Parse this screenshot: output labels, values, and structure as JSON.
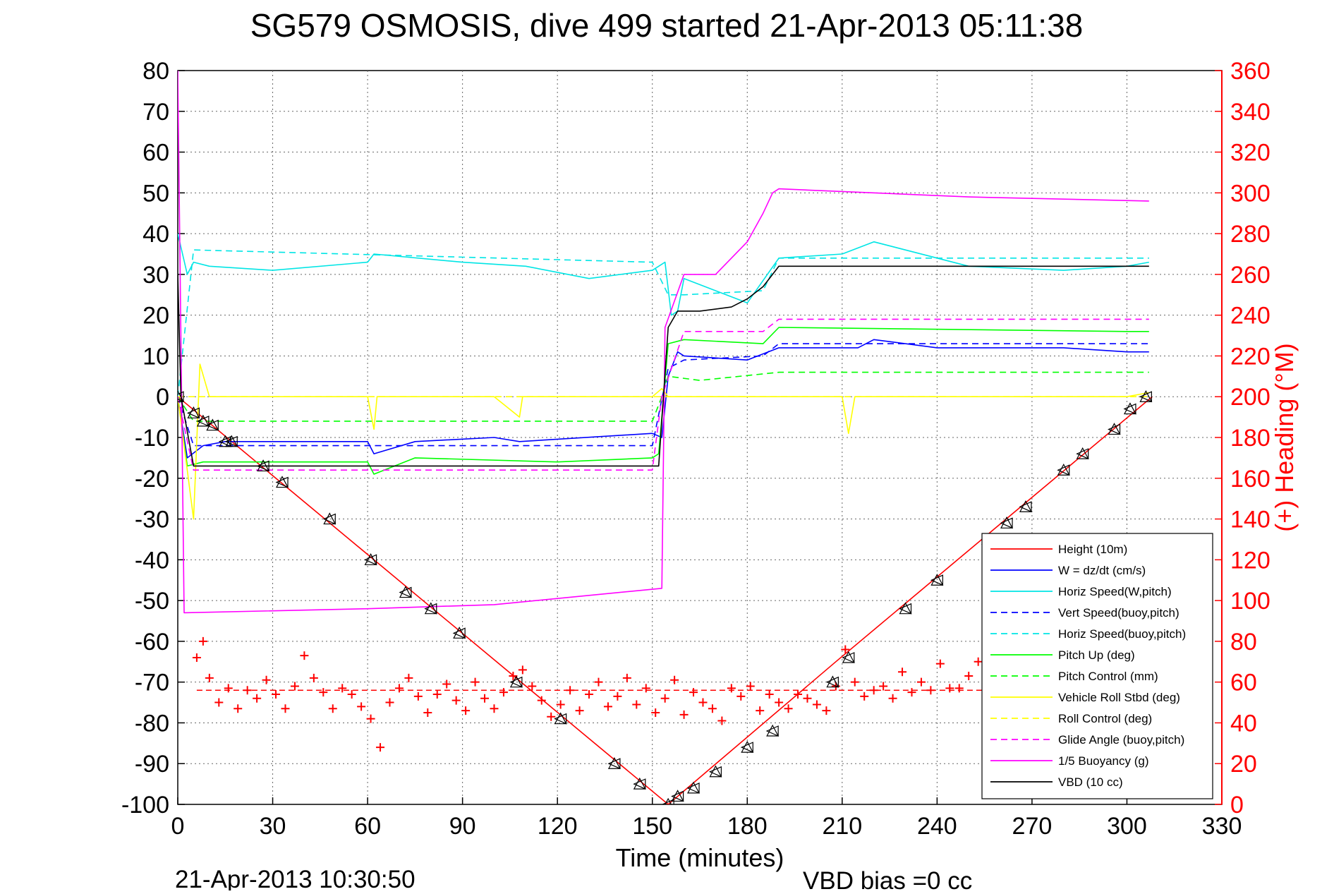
{
  "chart_data": {
    "type": "line",
    "title": "SG579 OSMOSIS, dive 499 started 21-Apr-2013 05:11:38",
    "xlabel": "Time (minutes)",
    "ylabel": "",
    "y2label": "(+) Heading (°M)",
    "xlim": [
      0,
      330
    ],
    "ylim": [
      -100,
      80
    ],
    "y2lim": [
      0,
      360
    ],
    "xticks": [
      0,
      30,
      60,
      90,
      120,
      150,
      180,
      210,
      240,
      270,
      300,
      330
    ],
    "yticks": [
      -100,
      -90,
      -80,
      -70,
      -60,
      -50,
      -40,
      -30,
      -20,
      -10,
      0,
      10,
      20,
      30,
      40,
      50,
      60,
      70,
      80
    ],
    "y2ticks": [
      0,
      20,
      40,
      60,
      80,
      100,
      120,
      140,
      160,
      180,
      200,
      220,
      240,
      260,
      280,
      300,
      320,
      340,
      360
    ],
    "grid": true,
    "legend_position": "bottom-right",
    "footer_left": "21-Apr-2013 10:30:50",
    "footer_right": "VBD bias =0 cc",
    "colors": {
      "red": "#ff0000",
      "blue": "#0000ff",
      "cyan": "#00e5e5",
      "green": "#00ff00",
      "yellow": "#ffff00",
      "magenta": "#ff00ff",
      "black": "#000000"
    },
    "series": [
      {
        "name": "Height (10m)",
        "color": "#ff0000",
        "style": "solid",
        "x": [
          0,
          155,
          208,
          308
        ],
        "y": [
          0,
          -100,
          -65,
          0
        ]
      },
      {
        "name": "W = dz/dt (cm/s)",
        "color": "#0000ff",
        "style": "solid",
        "x": [
          0,
          3,
          8,
          15,
          60,
          62,
          75,
          100,
          108,
          150,
          153,
          155,
          158,
          160,
          180,
          190,
          215,
          220,
          240,
          280,
          300,
          307
        ],
        "y": [
          0,
          -15,
          -12,
          -11,
          -11,
          -14,
          -11,
          -10,
          -11,
          -9,
          -10,
          5,
          11,
          10,
          9,
          12,
          12,
          14,
          12,
          12,
          11,
          11
        ]
      },
      {
        "name": "Horiz Speed(W,pitch)",
        "color": "#00e5e5",
        "style": "solid",
        "x": [
          0,
          3,
          5,
          10,
          30,
          60,
          62,
          90,
          110,
          130,
          150,
          154,
          156,
          158,
          160,
          170,
          180,
          190,
          210,
          220,
          250,
          280,
          300,
          307
        ],
        "y": [
          40,
          30,
          33,
          32,
          31,
          33,
          35,
          33,
          32,
          29,
          31,
          33,
          20,
          21,
          29,
          26,
          23,
          34,
          35,
          38,
          32,
          31,
          32,
          33
        ]
      },
      {
        "name": "Vert Speed(buoy,pitch)",
        "color": "#0000ff",
        "style": "dashed",
        "x": [
          0,
          5,
          150,
          155,
          160,
          185,
          190,
          300,
          307
        ],
        "y": [
          0,
          -12,
          -12,
          7,
          9,
          10,
          13,
          13,
          13
        ]
      },
      {
        "name": "Horiz Speed(buoy,pitch)",
        "color": "#00e5e5",
        "style": "dashed",
        "x": [
          0,
          5,
          150,
          155,
          160,
          185,
          190,
          300,
          307
        ],
        "y": [
          0,
          36,
          33,
          25,
          25,
          26,
          34,
          34,
          34
        ]
      },
      {
        "name": "Pitch Up (deg)",
        "color": "#00ff00",
        "style": "solid",
        "x": [
          0,
          3,
          8,
          60,
          62,
          75,
          120,
          150,
          152,
          155,
          160,
          185,
          190,
          300,
          307
        ],
        "y": [
          0,
          -17,
          -16,
          -16,
          -19,
          -15,
          -16,
          -15,
          -14,
          13,
          14,
          13,
          17,
          16,
          16
        ]
      },
      {
        "name": "Pitch Control (mm)",
        "color": "#00ff00",
        "style": "dashed",
        "x": [
          0,
          5,
          150,
          153,
          155,
          165,
          190,
          307
        ],
        "y": [
          0,
          -6,
          -6,
          0,
          5,
          4,
          6,
          6
        ]
      },
      {
        "name": "Vehicle Roll Stbd (deg)",
        "color": "#ffff00",
        "style": "solid",
        "x": [
          0,
          5,
          7,
          10,
          60,
          62,
          63,
          100,
          108,
          109,
          150,
          153,
          155,
          158,
          160,
          210,
          212,
          214,
          250,
          300,
          307
        ],
        "y": [
          0,
          -30,
          8,
          0,
          0,
          -8,
          0,
          0,
          -5,
          0,
          0,
          2,
          0,
          0,
          0,
          0,
          -9,
          0,
          0,
          0,
          1
        ]
      },
      {
        "name": "Roll Control (deg)",
        "color": "#ffff00",
        "style": "dashed",
        "x": [
          0,
          307
        ],
        "y": [
          0,
          0
        ]
      },
      {
        "name": "Glide Angle (buoy,pitch)",
        "color": "#ff00ff",
        "style": "dashed",
        "x": [
          0,
          5,
          150,
          153,
          160,
          185,
          190,
          300,
          307
        ],
        "y": [
          0,
          -18,
          -18,
          0,
          16,
          16,
          19,
          19,
          19
        ]
      },
      {
        "name": "1/5 Buoyancy (g)",
        "color": "#ff00ff",
        "style": "solid",
        "x": [
          0,
          2,
          60,
          100,
          153,
          154,
          160,
          170,
          180,
          185,
          188,
          190,
          250,
          307
        ],
        "y": [
          80,
          -53,
          -52,
          -51,
          -47,
          17,
          30,
          30,
          38,
          45,
          50,
          51,
          49,
          48
        ]
      },
      {
        "name": "VBD (10 cc)",
        "color": "#000000",
        "style": "solid",
        "x": [
          0,
          1,
          5,
          150,
          152,
          155,
          158,
          165,
          175,
          180,
          185,
          190,
          300,
          307
        ],
        "y": [
          30,
          0,
          -17,
          -17,
          -17,
          17,
          21,
          21,
          22,
          24,
          27,
          32,
          32,
          32
        ]
      }
    ],
    "heading": {
      "name": "(+) Heading",
      "color": "#ff0000",
      "mean": 56,
      "x": [
        6,
        8,
        10,
        13,
        16,
        19,
        22,
        25,
        28,
        31,
        34,
        37,
        40,
        43,
        46,
        49,
        52,
        55,
        58,
        61,
        64,
        67,
        70,
        73,
        76,
        79,
        82,
        85,
        88,
        91,
        94,
        97,
        100,
        103,
        106,
        109,
        112,
        115,
        118,
        121,
        124,
        127,
        130,
        133,
        136,
        139,
        142,
        145,
        148,
        151,
        154,
        157,
        160,
        163,
        166,
        169,
        172,
        175,
        178,
        181,
        184,
        187,
        190,
        193,
        196,
        199,
        202,
        205,
        208,
        211,
        214,
        217,
        220,
        223,
        226,
        229,
        232,
        235,
        238,
        241,
        244,
        247,
        250,
        253,
        256
      ],
      "y": [
        72,
        80,
        62,
        50,
        57,
        47,
        56,
        52,
        61,
        54,
        47,
        58,
        73,
        62,
        55,
        47,
        57,
        54,
        48,
        42,
        28,
        50,
        57,
        62,
        53,
        45,
        54,
        59,
        51,
        46,
        60,
        52,
        47,
        55,
        63,
        66,
        58,
        51,
        43,
        49,
        56,
        46,
        54,
        60,
        48,
        53,
        62,
        49,
        57,
        45,
        52,
        61,
        44,
        55,
        50,
        47,
        41,
        57,
        53,
        58,
        46,
        54,
        50,
        47,
        54,
        52,
        49,
        46,
        58,
        76,
        60,
        53,
        56,
        58,
        52,
        65,
        55,
        60,
        56,
        69,
        57,
        57,
        63,
        70,
        75
      ]
    },
    "markers": {
      "x": [
        0,
        5,
        8,
        11,
        15,
        17,
        27,
        33,
        48,
        61,
        72,
        80,
        89,
        107,
        121,
        138,
        146,
        155,
        158,
        163,
        170,
        180,
        188,
        207,
        212,
        230,
        240,
        256,
        262,
        268,
        280,
        286,
        296,
        301,
        306
      ],
      "y": [
        0,
        -4,
        -6,
        -7,
        -11,
        -11,
        -17,
        -21,
        -30,
        -40,
        -48,
        -52,
        -58,
        -70,
        -79,
        -90,
        -95,
        -100,
        -98,
        -96,
        -92,
        -86,
        -82,
        -70,
        -64,
        -52,
        -45,
        -35,
        -31,
        -27,
        -18,
        -14,
        -8,
        -3,
        0
      ]
    }
  }
}
